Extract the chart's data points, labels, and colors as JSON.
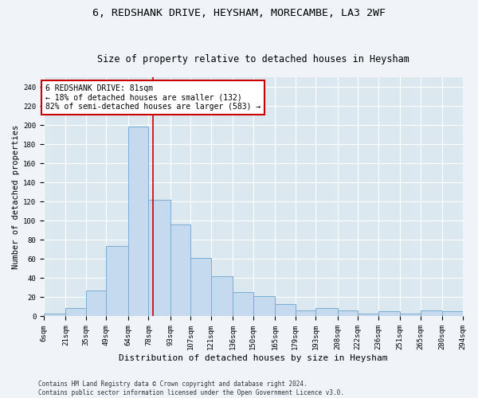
{
  "title": "6, REDSHANK DRIVE, HEYSHAM, MORECAMBE, LA3 2WF",
  "subtitle": "Size of property relative to detached houses in Heysham",
  "xlabel": "Distribution of detached houses by size in Heysham",
  "ylabel": "Number of detached properties",
  "bar_color": "#c5d9ef",
  "bar_edge_color": "#7aadd4",
  "background_color": "#dce8f0",
  "fig_color": "#f0f4f8",
  "grid_color": "#ffffff",
  "vline_x": 81,
  "vline_color": "#cc0000",
  "annotation_text": "6 REDSHANK DRIVE: 81sqm\n← 18% of detached houses are smaller (132)\n82% of semi-detached houses are larger (583) →",
  "annotation_box_color": "#ffffff",
  "annotation_box_edge": "#cc0000",
  "bin_edges": [
    6,
    21,
    35,
    49,
    64,
    78,
    93,
    107,
    121,
    136,
    150,
    165,
    179,
    193,
    208,
    222,
    236,
    251,
    265,
    280,
    294
  ],
  "bar_heights": [
    3,
    9,
    27,
    74,
    199,
    122,
    96,
    61,
    42,
    25,
    21,
    13,
    6,
    9,
    6,
    3,
    5,
    3,
    6,
    5
  ],
  "ylim": [
    0,
    250
  ],
  "yticks": [
    0,
    20,
    40,
    60,
    80,
    100,
    120,
    140,
    160,
    180,
    200,
    220,
    240
  ],
  "footer_text": "Contains HM Land Registry data © Crown copyright and database right 2024.\nContains public sector information licensed under the Open Government Licence v3.0.",
  "title_fontsize": 9.5,
  "subtitle_fontsize": 8.5,
  "xlabel_fontsize": 8,
  "ylabel_fontsize": 7.5,
  "tick_fontsize": 6.5,
  "annotation_fontsize": 7,
  "footer_fontsize": 5.5
}
